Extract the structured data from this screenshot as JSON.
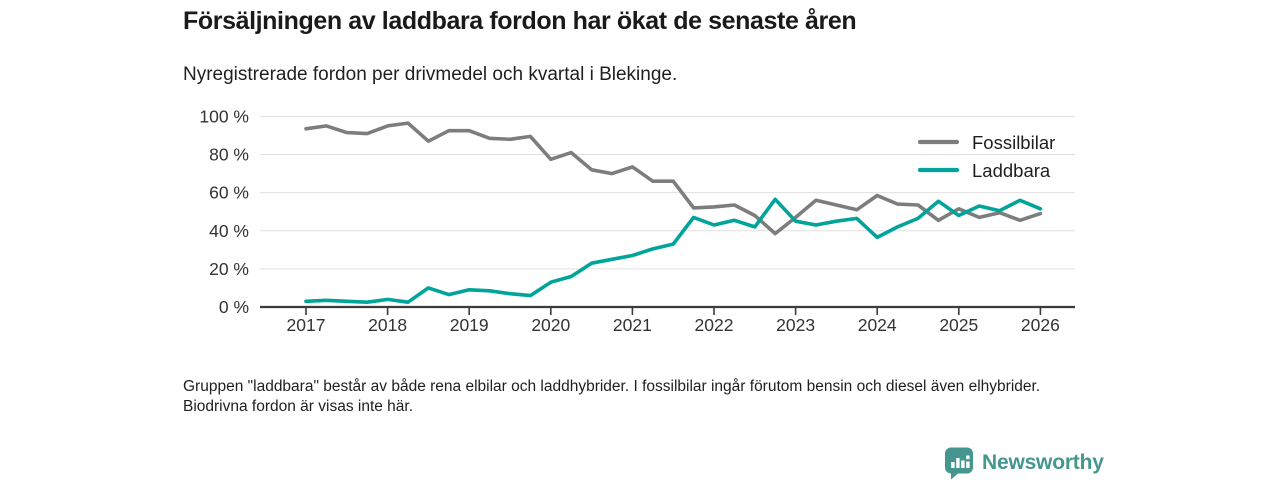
{
  "header": {
    "title": "Försäljningen av laddbara fordon har ökat de senaste åren",
    "subtitle": "Nyregistrerade fordon per drivmedel och kvartal i Blekinge."
  },
  "footnote": "Gruppen \"laddbara\" består av både rena elbilar och laddhybrider. I fossilbilar ingår förutom bensin och diesel även elhybrider. Biodrivna fordon är visas inte här.",
  "logo": {
    "text": "Newsworthy",
    "icon": "newsworthy-pin-barchart-icon",
    "color": "#45968e"
  },
  "chart_data": {
    "type": "line",
    "x_unit": "quarter",
    "x_start": "2017 Q1",
    "x_end": "2026 Q1",
    "x_tick_labels": [
      "2017",
      "2018",
      "2019",
      "2020",
      "2021",
      "2022",
      "2023",
      "2024",
      "2025",
      "2026"
    ],
    "y_tick_labels": [
      "0 %",
      "20 %",
      "40 %",
      "60 %",
      "80 %",
      "100 %"
    ],
    "ylim": [
      0,
      100
    ],
    "grid": "horizontal",
    "legend_position": "top-right-inside",
    "axis_color": "#3b3b3b",
    "grid_color": "#e0e0e0",
    "tick_text_color": "#333333",
    "legend_text_color": "#1f1f1f",
    "series": [
      {
        "name": "Fossilbilar",
        "color": "#7d7d7d",
        "values": [
          93.5,
          95,
          91.5,
          91,
          95,
          96.5,
          87,
          92.5,
          92.5,
          88.5,
          88,
          89.5,
          77.5,
          81,
          72,
          70,
          73.5,
          66,
          66,
          52,
          52.5,
          53.5,
          48,
          38.5,
          47,
          56,
          53.5,
          51,
          58.5,
          54,
          53.5,
          45.5,
          51.5,
          47,
          49.5,
          45.5,
          49
        ]
      },
      {
        "name": "Laddbara",
        "color": "#00a49a",
        "values": [
          3,
          3.5,
          3,
          2.5,
          4,
          2.5,
          10,
          6.5,
          9,
          8.5,
          7,
          6,
          13,
          16,
          23,
          25,
          27,
          30.5,
          33,
          47,
          43,
          45.5,
          42,
          56.5,
          45,
          43,
          45,
          46.5,
          36.5,
          42,
          46.5,
          55.5,
          48,
          53,
          50.5,
          56,
          51.5
        ]
      }
    ]
  }
}
